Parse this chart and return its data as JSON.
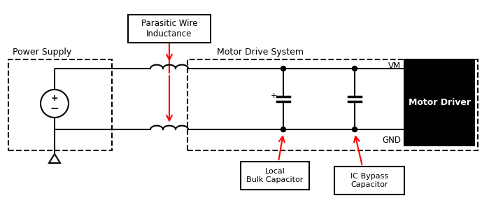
{
  "power_supply_label": "Power Supply",
  "motor_drive_label": "Motor Drive System",
  "parasitic_label": "Parasitic Wire\nInductance",
  "local_bulk_label": "Local\nBulk Capacitor",
  "ic_bypass_label": "IC Bypass\nCapacitor",
  "motor_driver_label": "Motor Driver",
  "vm_label": "VM",
  "gnd_label": "GND",
  "bg_color": "#ffffff",
  "line_color": "#000000",
  "red_color": "#ff0000",
  "motor_driver_bg": "#000000",
  "motor_driver_fg": "#ffffff"
}
